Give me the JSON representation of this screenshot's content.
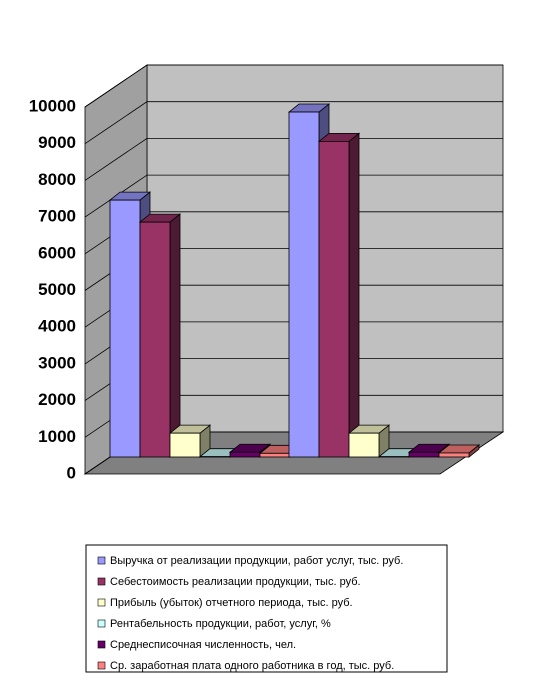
{
  "chart_data": {
    "type": "bar3d",
    "categories": [
      null,
      null
    ],
    "series": [
      {
        "name": "Выручка от реализации продукции, работ услуг, тыс. руб.",
        "color": "#9999ff",
        "values": [
          7000,
          9400
        ]
      },
      {
        "name": "Себестоимость реализации продукции, тыс. руб.",
        "color": "#993366",
        "values": [
          6400,
          8600
        ]
      },
      {
        "name": "Прибыль (убыток) отчетного периода, тыс. руб.",
        "color": "#ffffcc",
        "values": [
          650,
          650
        ]
      },
      {
        "name": "Рентабельность продукции, работ, услуг, %",
        "color": "#ccffff",
        "values": [
          9,
          8
        ]
      },
      {
        "name": "Среднесписочная численность, чел.",
        "color": "#660066",
        "values": [
          130,
          130
        ]
      },
      {
        "name": "Ср. заработная плата одного работника в год, тыс. руб.",
        "color": "#ff8080",
        "values": [
          100,
          110
        ]
      }
    ],
    "ylim": [
      0,
      10000
    ],
    "yticks": [
      0,
      1000,
      2000,
      3000,
      4000,
      5000,
      6000,
      7000,
      8000,
      9000,
      10000
    ],
    "grid": true
  }
}
